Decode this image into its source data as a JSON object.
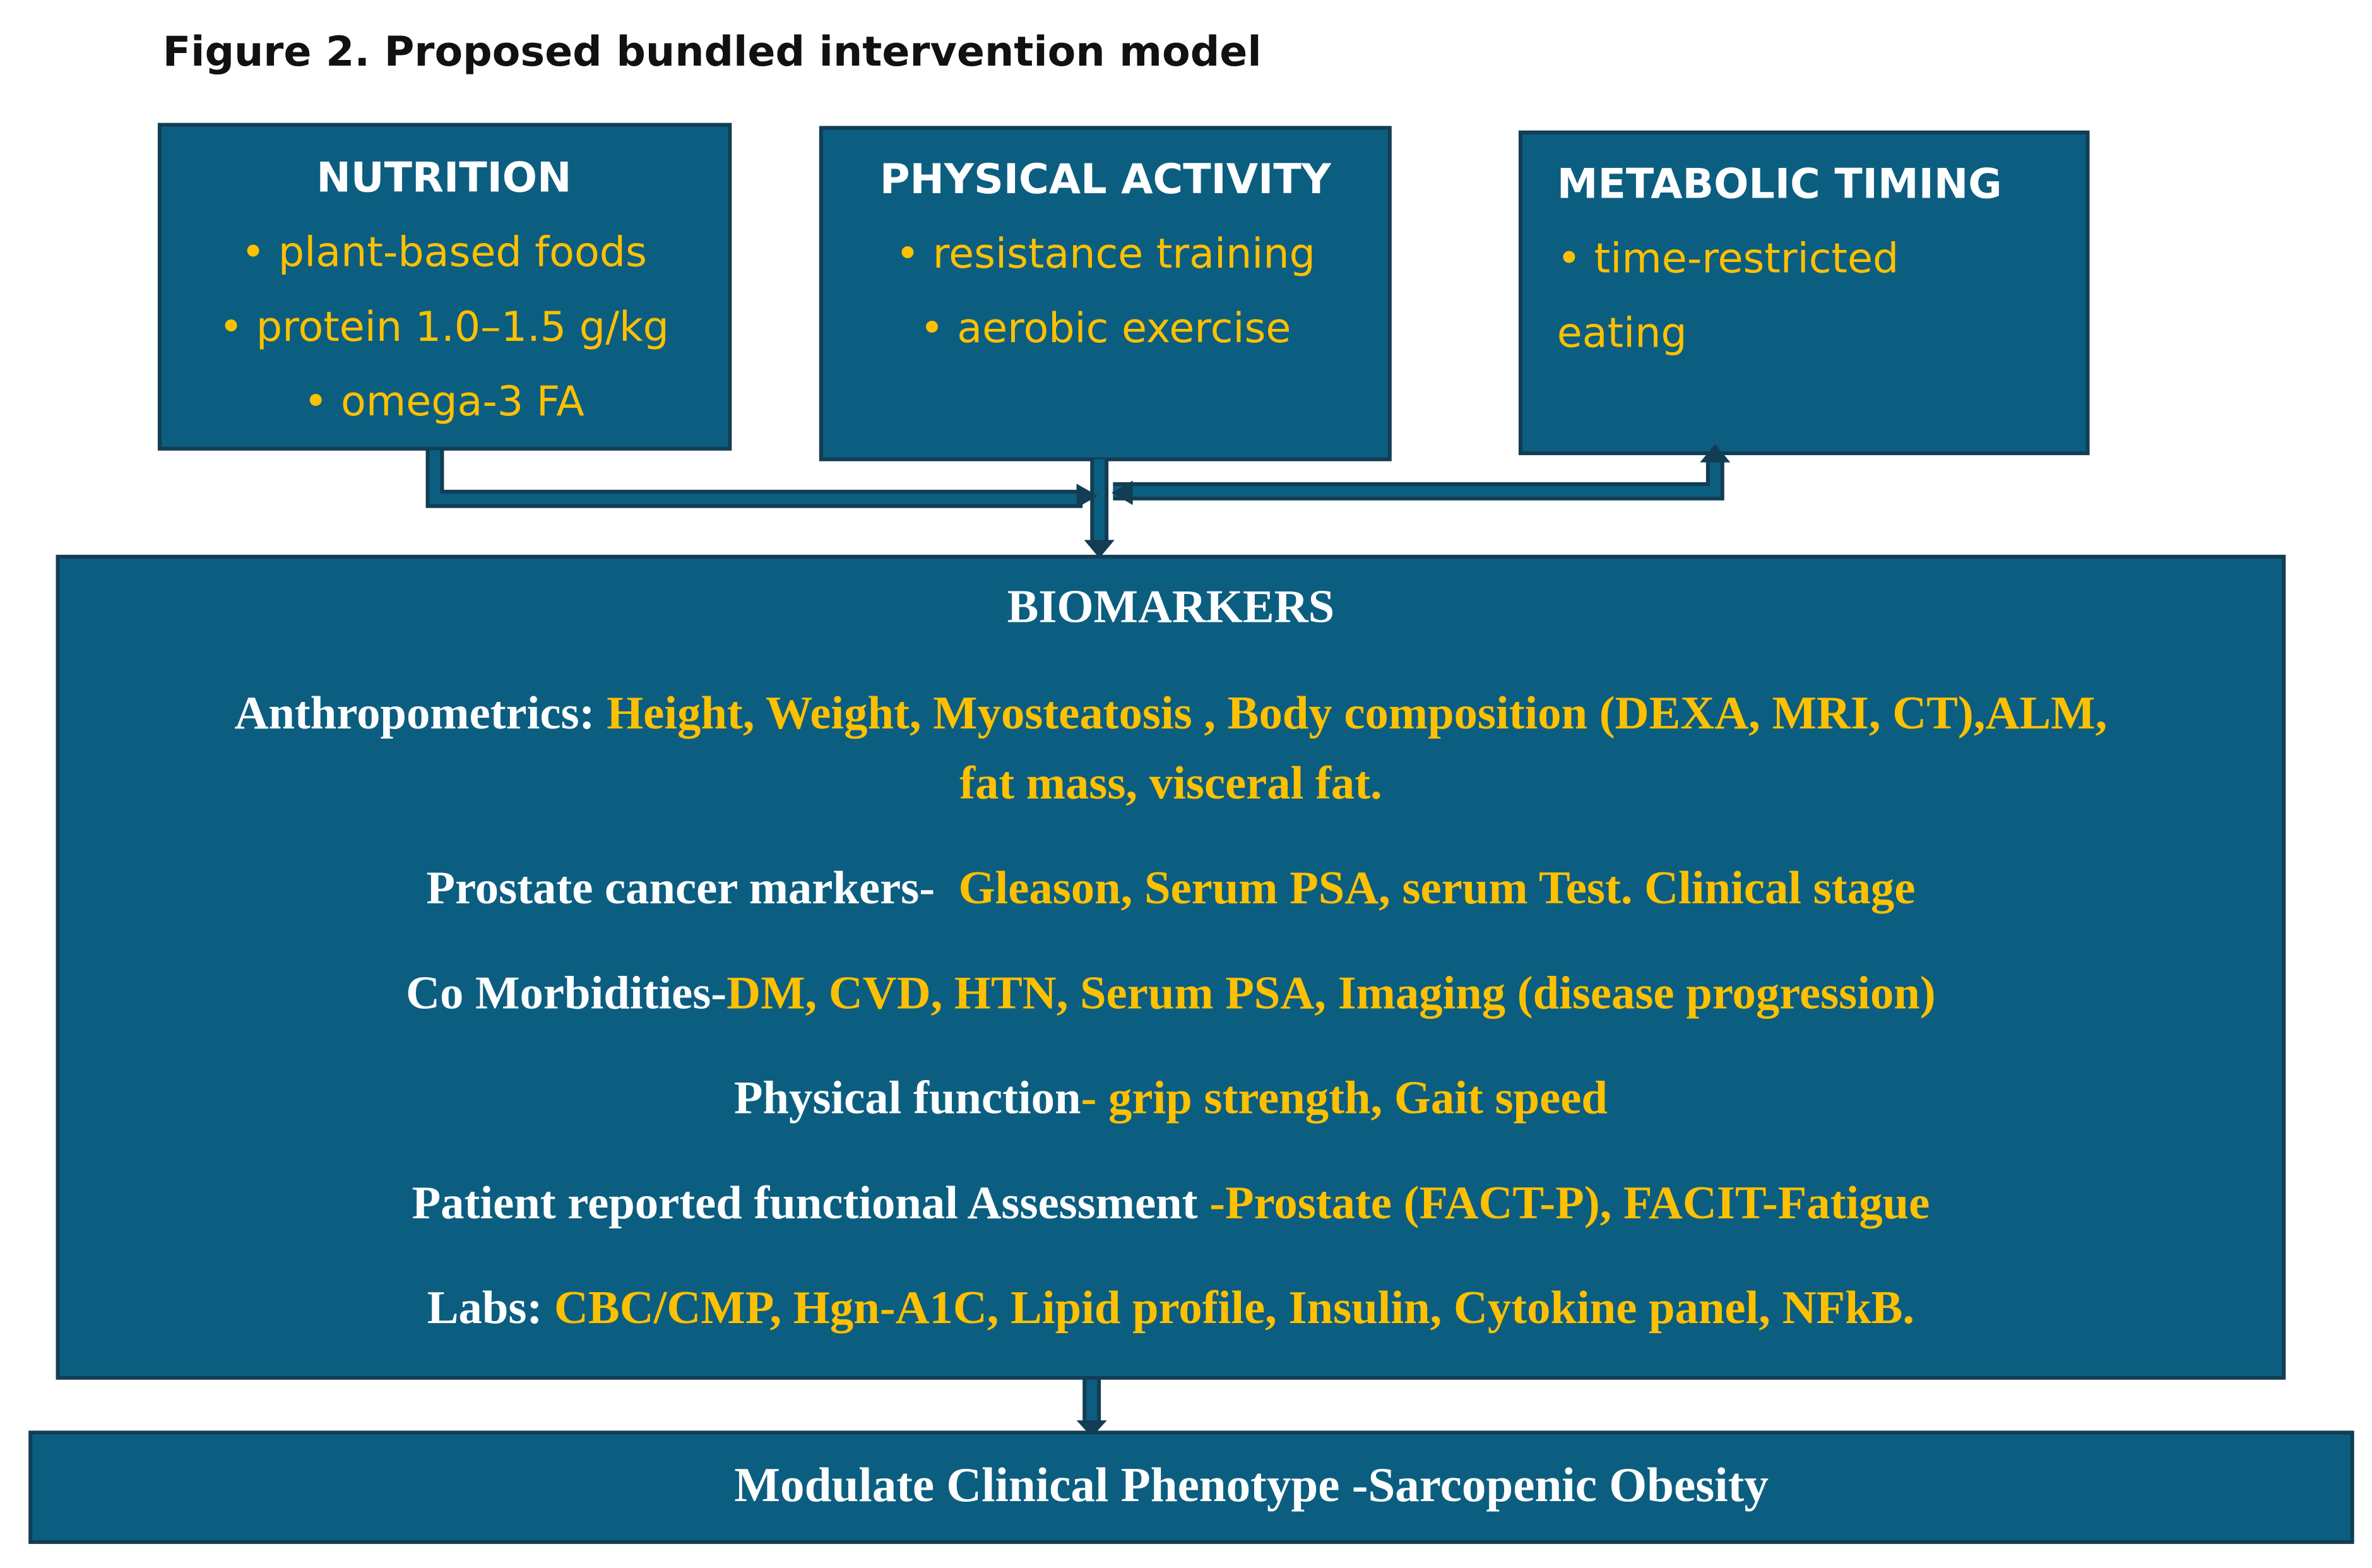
{
  "title": "Figure 2. Proposed bundled intervention model",
  "boxes": [
    {
      "heading": "NUTRITION",
      "items": [
        "• plant-based foods",
        "• protein 1.0–1.5 g/kg",
        "• omega-3 FA"
      ]
    },
    {
      "heading": "PHYSICAL ACTIVITY",
      "items": [
        "• resistance training",
        "• aerobic exercise"
      ]
    },
    {
      "heading": "METABOLIC TIMING",
      "items": [
        "• time-restricted",
        "eating"
      ]
    }
  ],
  "biomarkers": {
    "heading": "BIOMARKERS",
    "rows": [
      {
        "label": "Anthropometrics: ",
        "detail": [
          "Height, Weight, Myosteatosis , Body composition (DEXA, MRI, CT),ALM,",
          "fat mass, visceral fat."
        ]
      },
      {
        "label": "Prostate cancer markers-  ",
        "detail": [
          "Gleason, Serum PSA, serum Test. Clinical stage"
        ]
      },
      {
        "label": "Co Morbidities-",
        "detail": [
          "DM, CVD, HTN, Serum PSA, Imaging (disease progression)"
        ]
      },
      {
        "label": "Physical function",
        "detail": [
          "- grip strength, Gait speed"
        ]
      },
      {
        "label": "Patient reported functional Assessment ",
        "detail": [
          "-Prostate (FACT-P), FACIT-Fatigue"
        ]
      },
      {
        "label": "Labs: ",
        "detail": [
          "CBC/CMP, Hgn-A1C, Lipid profile, Insulin, Cytokine panel, NFkB."
        ]
      }
    ]
  },
  "outcome": "Modulate Clinical Phenotype -Sarcopenic Obesity"
}
